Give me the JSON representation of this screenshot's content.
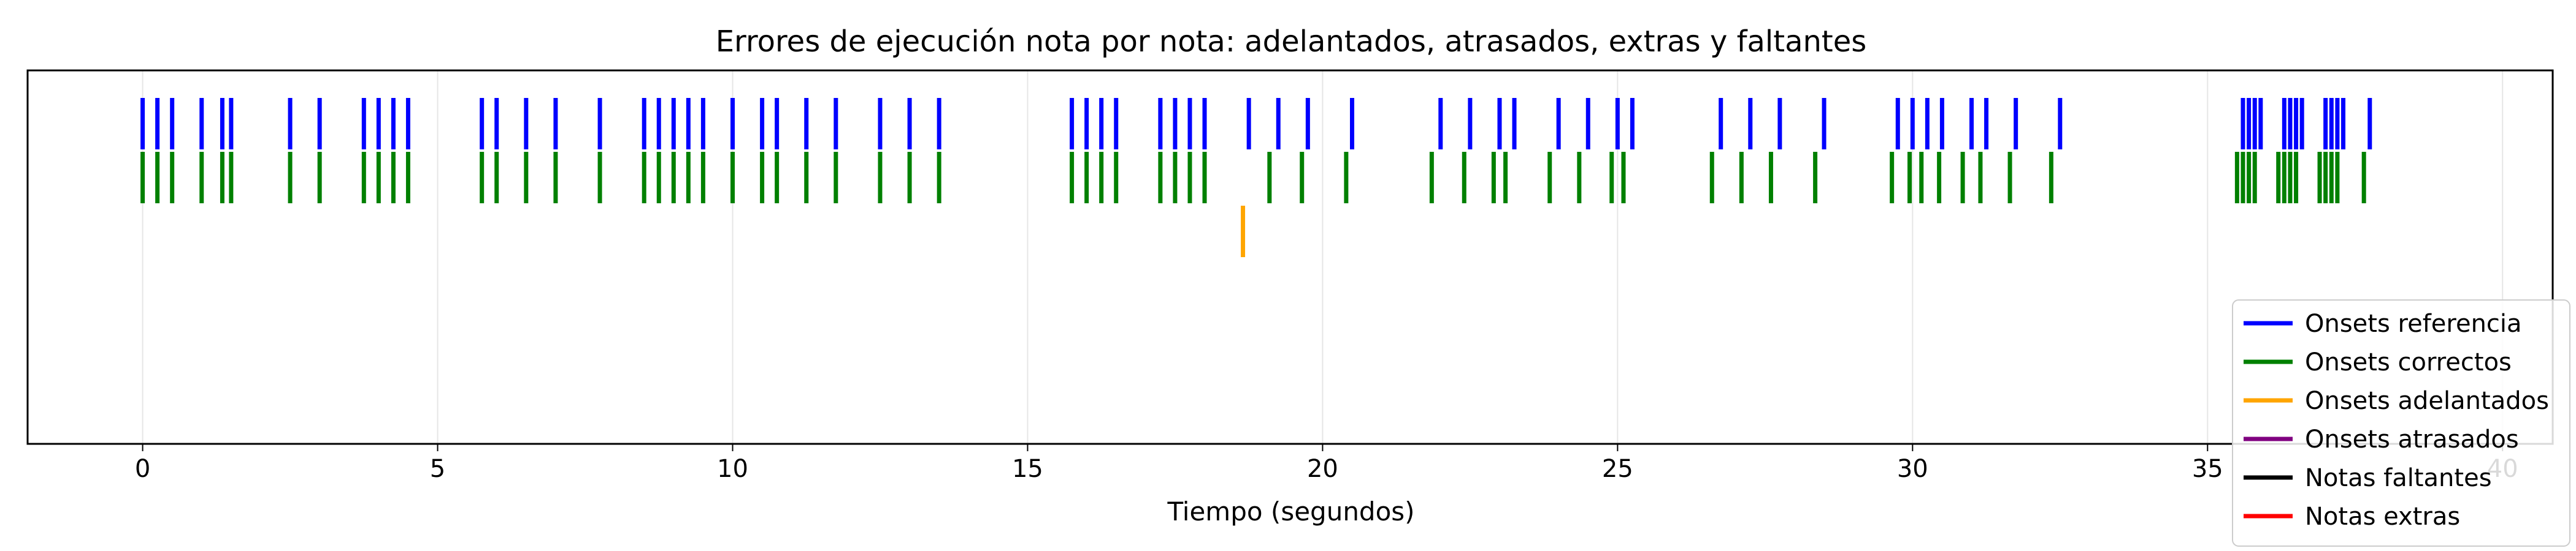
{
  "chart_data": {
    "type": "event-plot",
    "title": "Errores de ejecución nota por nota: adelantados, atrasados, extras y faltantes",
    "xlabel": "Tiempo (segundos)",
    "ylabel": "",
    "xlim": [
      -1.95,
      40.85
    ],
    "xticks": [
      0,
      5,
      10,
      15,
      20,
      25,
      30,
      35,
      40
    ],
    "grid": "vertical",
    "legend_position": "lower-right",
    "series": [
      {
        "name": "Onsets referencia",
        "color": "#0000ff",
        "row": 1,
        "x": [
          0,
          0.25,
          0.5,
          1.0,
          1.35,
          1.5,
          2.5,
          3.0,
          3.75,
          4.0,
          4.25,
          4.5,
          5.75,
          6.0,
          6.5,
          7.0,
          7.75,
          8.5,
          8.75,
          9.0,
          9.25,
          9.5,
          10.0,
          10.5,
          10.75,
          11.25,
          11.75,
          12.5,
          13.0,
          13.5,
          15.75,
          16.0,
          16.25,
          16.5,
          17.25,
          17.5,
          17.75,
          18.0,
          18.75,
          19.25,
          19.75,
          20.5,
          22.0,
          22.5,
          23.0,
          23.25,
          24.0,
          24.5,
          25.0,
          25.25,
          26.75,
          27.25,
          27.75,
          28.5,
          29.75,
          30.0,
          30.25,
          30.5,
          31.0,
          31.25,
          31.75,
          32.5,
          35.6,
          35.7,
          35.8,
          35.9,
          36.3,
          36.4,
          36.5,
          36.6,
          37.0,
          37.1,
          37.2,
          37.3,
          37.75
        ]
      },
      {
        "name": "Onsets correctos",
        "color": "#008000",
        "row": 2,
        "x": [
          0,
          0.25,
          0.5,
          1.0,
          1.35,
          1.5,
          2.5,
          3.0,
          3.75,
          4.0,
          4.25,
          4.5,
          5.75,
          6.0,
          6.5,
          7.0,
          7.75,
          8.5,
          8.75,
          9.0,
          9.25,
          9.5,
          10.0,
          10.5,
          10.75,
          11.25,
          11.75,
          12.5,
          13.0,
          13.5,
          15.75,
          16.0,
          16.25,
          16.5,
          17.25,
          17.5,
          17.75,
          18.0,
          19.1,
          19.65,
          20.4,
          21.85,
          22.4,
          22.9,
          23.1,
          23.85,
          24.35,
          24.9,
          25.1,
          26.6,
          27.1,
          27.6,
          28.35,
          29.65,
          29.95,
          30.15,
          30.45,
          30.85,
          31.15,
          31.65,
          32.35,
          35.5,
          35.6,
          35.7,
          35.8,
          36.2,
          36.3,
          36.4,
          36.5,
          36.9,
          37.0,
          37.1,
          37.2,
          37.65
        ]
      },
      {
        "name": "Onsets adelantados",
        "color": "#ffa500",
        "row": 3,
        "x": [
          18.65
        ]
      },
      {
        "name": "Onsets atrasados",
        "color": "#800080",
        "row": 4,
        "x": []
      },
      {
        "name": "Notas faltantes",
        "color": "#000000",
        "row": 5,
        "x": []
      },
      {
        "name": "Notas extras",
        "color": "#ff0000",
        "row": 6,
        "x": []
      }
    ]
  }
}
